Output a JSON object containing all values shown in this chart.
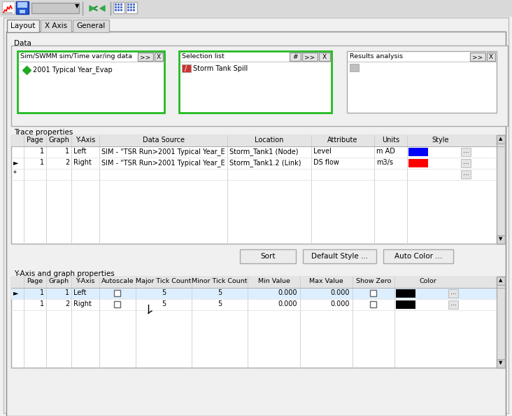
{
  "bg_color": "#f0f0f0",
  "tab_active": "Layout",
  "tabs": [
    "Layout",
    "X Axis",
    "General"
  ],
  "section1_title": "Data",
  "box1_label": "Sim/SWMM sim/Time var/ing data",
  "box1_item": "2001 Typical Year_Evap",
  "box2_label": "Selection list",
  "box2_item": "Storm Tank Spill",
  "box3_label": "Results analysis",
  "section2_title": "Trace properties",
  "trace_rows": [
    {
      "sel": "",
      "page": "1",
      "graph": "1",
      "yaxis": "Left",
      "datasource": "SIM - \"TSR Run>2001 Typical Year_E",
      "location": "Storm_Tank1 (Node)",
      "attribute": "Level",
      "units": "m AD",
      "style_color": "#0000ff"
    },
    {
      "sel": "►",
      "page": "1",
      "graph": "2",
      "yaxis": "Right",
      "datasource": "SIM - \"TSR Run>2001 Typical Year_E",
      "location": "Storm_Tank1.2 (Link)",
      "attribute": "DS flow",
      "units": "m3/s",
      "style_color": "#ff0000"
    },
    {
      "sel": "*",
      "page": "",
      "graph": "",
      "yaxis": "",
      "datasource": "",
      "location": "",
      "attribute": "",
      "units": "",
      "style_color": null
    }
  ],
  "buttons": [
    "Sort",
    "Default Style ...",
    "Auto Color ..."
  ],
  "section3_title": "Y-Axis and graph properties",
  "yaxis_rows": [
    {
      "sel": "►",
      "page": "1",
      "graph": "1",
      "yaxis": "Left",
      "autoscale": false,
      "major": "5",
      "minor": "5",
      "min": "0.000",
      "max": "0.000",
      "showzero": false,
      "color": "#000000"
    },
    {
      "sel": "",
      "page": "1",
      "graph": "2",
      "yaxis": "Right",
      "autoscale": false,
      "major": "5",
      "minor": "5",
      "min": "0.000",
      "max": "0.000",
      "showzero": false,
      "color": "#000000"
    }
  ]
}
